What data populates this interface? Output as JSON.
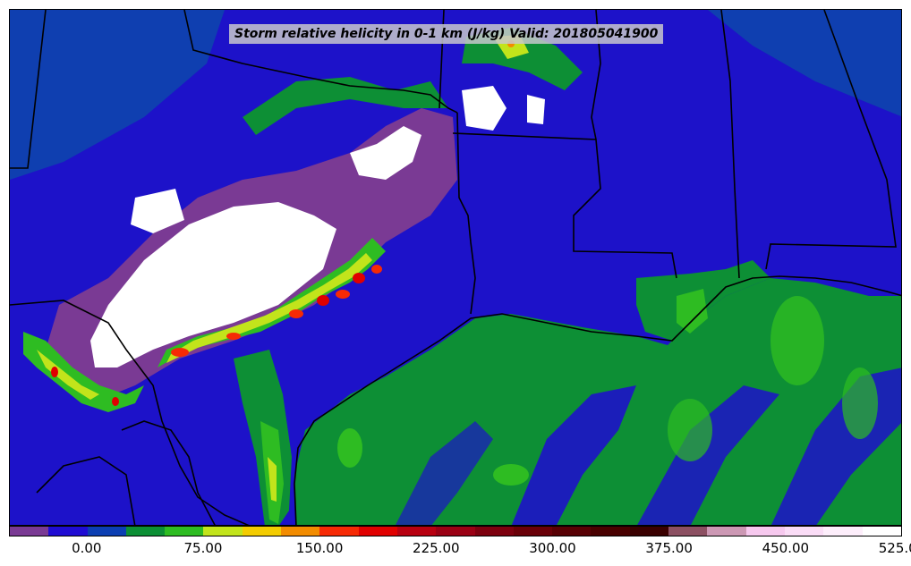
{
  "title": "Storm relative helicity in 0-1 km (J/kg) Valid: 201805041900",
  "colorbar": {
    "colors": [
      "#7a3a94",
      "#1f0cd3",
      "#0c3fb2",
      "#0c8f35",
      "#2ebc22",
      "#c2e41b",
      "#f3cc00",
      "#f28c00",
      "#f62a05",
      "#e00000",
      "#b80011",
      "#9a0014",
      "#7d000f",
      "#6a0008",
      "#580004",
      "#490000",
      "#3a0000",
      "#8c5062",
      "#cc98b4",
      "#f6c8ee",
      "#fadcf6",
      "#fdeefb",
      "#ffffff"
    ],
    "tick_labels": [
      "0.00",
      "75.00",
      "150.00",
      "225.00",
      "300.00",
      "375.00",
      "450.00",
      "525.00"
    ]
  },
  "legend_colors": {
    "ocean_base": "#0d8f35",
    "land_base": "#1d12c9",
    "state_lines": "#000000"
  }
}
